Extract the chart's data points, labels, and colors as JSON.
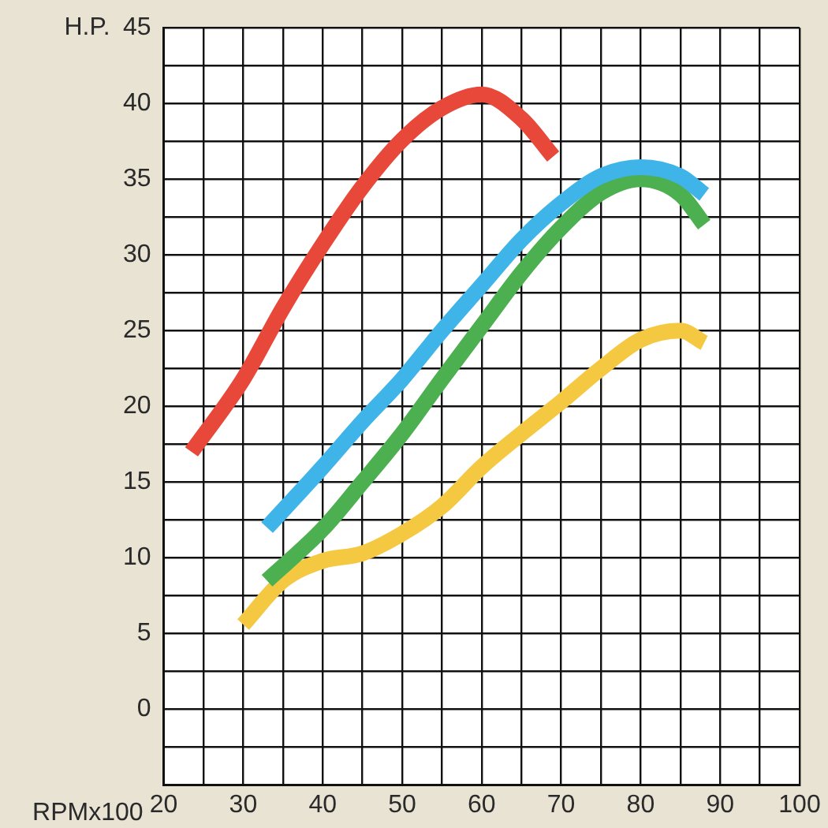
{
  "chart_data": {
    "type": "line",
    "xlabel": "RPMx100",
    "ylabel": "H.P.",
    "xlim": [
      20,
      100
    ],
    "xticks": [
      20,
      {
        "value": 25,
        "label": null
      },
      30,
      {
        "value": 35,
        "label": null
      },
      40,
      {
        "value": 45,
        "label": null
      },
      50,
      {
        "value": 55,
        "label": null
      },
      60,
      {
        "value": 65,
        "label": null
      },
      70,
      {
        "value": 75,
        "label": null
      },
      80,
      {
        "value": 85,
        "label": null
      },
      90,
      {
        "value": 95,
        "label": null
      },
      100
    ],
    "ylim": [
      -5,
      45
    ],
    "yticks": [
      {
        "value": -5,
        "label": null
      },
      {
        "value": -2.5,
        "label": null
      },
      0,
      {
        "value": 2.5,
        "label": null
      },
      5,
      {
        "value": 7.5,
        "label": null
      },
      10,
      {
        "value": 12.5,
        "label": null
      },
      15,
      {
        "value": 17.5,
        "label": null
      },
      20,
      {
        "value": 22.5,
        "label": null
      },
      25,
      {
        "value": 27.5,
        "label": null
      },
      30,
      {
        "value": 32.5,
        "label": null
      },
      35,
      {
        "value": 37.5,
        "label": null
      },
      40,
      {
        "value": 42.5,
        "label": null
      },
      45
    ],
    "grid": true,
    "marker": "none",
    "line_style": "solid",
    "legend": false,
    "series": [
      {
        "color": "#e8483a",
        "x": [
          23.5,
          30,
          35,
          40,
          45,
          50,
          55,
          60,
          65,
          69
        ],
        "values": [
          17,
          21.8,
          26.5,
          30.7,
          34.5,
          37.6,
          39.7,
          40.6,
          39,
          36.5
        ]
      },
      {
        "color": "#3fb4e8",
        "x": [
          33,
          40,
          45,
          50,
          55,
          60,
          65,
          70,
          75,
          80,
          85,
          88
        ],
        "values": [
          12,
          16,
          19,
          21.8,
          25,
          28,
          31,
          33.4,
          35.2,
          35.8,
          35.2,
          34
        ]
      },
      {
        "color": "#4caf50",
        "x": [
          33,
          40,
          45,
          50,
          55,
          60,
          65,
          70,
          75,
          80,
          85,
          88
        ],
        "values": [
          8.5,
          11.9,
          15,
          18.2,
          21.8,
          25.3,
          28.8,
          31.8,
          34.1,
          35,
          34,
          32
        ]
      },
      {
        "color": "#f5c842",
        "x": [
          30,
          35,
          40,
          45,
          50,
          55,
          60,
          65,
          70,
          75,
          80,
          85,
          88
        ],
        "values": [
          5.6,
          8.5,
          9.8,
          10.3,
          11.6,
          13.4,
          16,
          18.2,
          20.3,
          22.5,
          24.4,
          25,
          24.2
        ]
      }
    ]
  }
}
